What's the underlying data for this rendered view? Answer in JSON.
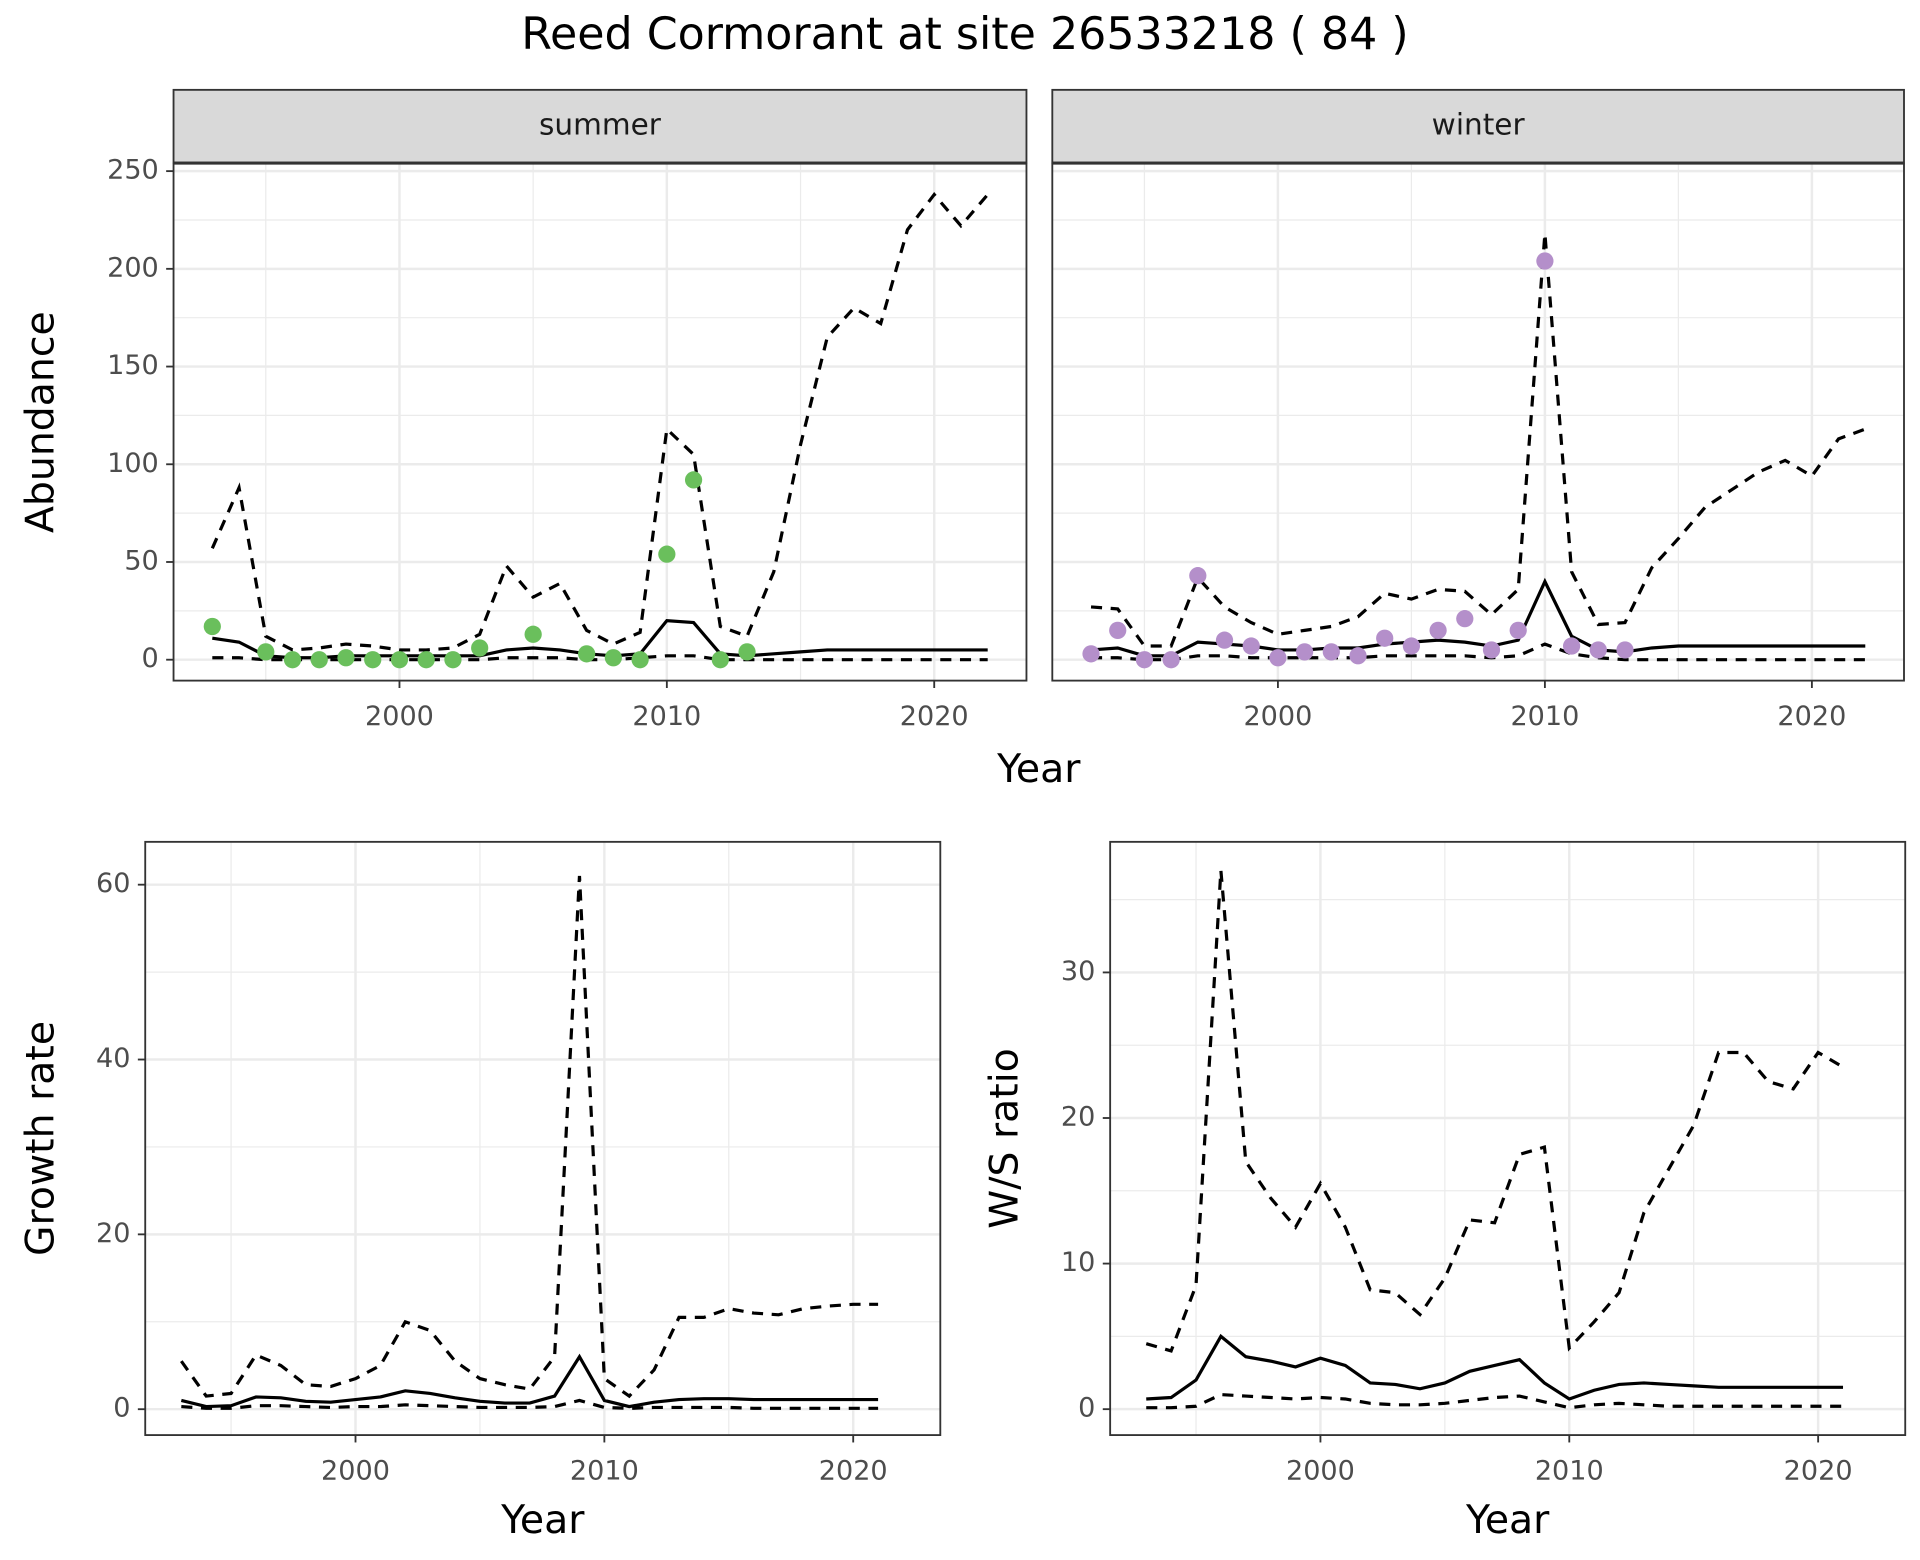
{
  "title": "Reed Cormorant at site 26533218 ( 84 )",
  "chart_data": [
    {
      "type": "line",
      "facet": "summer",
      "ylabel": "Abundance",
      "xlabel": "Year",
      "x": [
        1993,
        1994,
        1995,
        1996,
        1997,
        1998,
        1999,
        2000,
        2001,
        2002,
        2003,
        2004,
        2005,
        2006,
        2007,
        2008,
        2009,
        2010,
        2011,
        2012,
        2013,
        2014,
        2015,
        2016,
        2017,
        2018,
        2019,
        2020,
        2021,
        2022
      ],
      "series": [
        {
          "linestyle": "solid",
          "color": "#000000",
          "values": [
            11,
            9,
            2,
            1,
            1,
            2,
            2,
            2,
            2,
            2,
            2,
            5,
            6,
            5,
            3,
            2,
            3,
            20,
            19,
            3,
            2,
            3,
            4,
            5,
            5,
            5,
            5,
            5,
            5,
            5
          ]
        },
        {
          "linestyle": "dashed",
          "color": "#000000",
          "values": [
            57,
            88,
            12,
            5,
            6,
            8,
            7,
            5,
            5,
            6,
            13,
            48,
            32,
            39,
            15,
            8,
            14,
            118,
            105,
            17,
            12,
            45,
            110,
            165,
            180,
            172,
            220,
            238,
            222,
            238
          ]
        },
        {
          "linestyle": "dashed",
          "color": "#000000",
          "values": [
            1,
            1,
            0,
            0,
            0,
            0,
            0,
            0,
            0,
            0,
            0,
            1,
            1,
            1,
            0,
            0,
            1,
            2,
            2,
            0,
            0,
            0,
            0,
            0,
            0,
            0,
            0,
            0,
            0,
            0
          ]
        }
      ],
      "points": {
        "color": "#6abf5c",
        "x": [
          1993,
          1995,
          1996,
          1997,
          1998,
          1999,
          2000,
          2001,
          2002,
          2003,
          2005,
          2007,
          2008,
          2009,
          2010,
          2011,
          2012,
          2013
        ],
        "values": [
          17,
          4,
          0,
          0,
          1,
          0,
          0,
          0,
          0,
          6,
          13,
          3,
          1,
          0,
          54,
          92,
          0,
          4
        ]
      },
      "xlim": [
        1991.55,
        2023.45
      ],
      "ylim": [
        -10.7,
        253.8
      ],
      "xticks": [
        2000,
        2010,
        2020
      ],
      "yticks": [
        0,
        50,
        100,
        150,
        200,
        250
      ],
      "grid": true,
      "show_ytick_labels": true
    },
    {
      "type": "line",
      "facet": "winter",
      "x": [
        1993,
        1994,
        1995,
        1996,
        1997,
        1998,
        1999,
        2000,
        2001,
        2002,
        2003,
        2004,
        2005,
        2006,
        2007,
        2008,
        2009,
        2010,
        2011,
        2012,
        2013,
        2014,
        2015,
        2016,
        2017,
        2018,
        2019,
        2020,
        2021,
        2022
      ],
      "series": [
        {
          "linestyle": "solid",
          "color": "#000000",
          "values": [
            5,
            6,
            2,
            2,
            9,
            8,
            7,
            5,
            5,
            6,
            6,
            8,
            9,
            10,
            9,
            7,
            10,
            40,
            12,
            5,
            4,
            6,
            7,
            7,
            7,
            7,
            7,
            7,
            7,
            7
          ]
        },
        {
          "linestyle": "dashed",
          "color": "#000000",
          "values": [
            27,
            26,
            7,
            7,
            42,
            27,
            19,
            13,
            15,
            17,
            22,
            34,
            31,
            36,
            35,
            23,
            36,
            218,
            45,
            18,
            19,
            47,
            62,
            78,
            87,
            96,
            102,
            94,
            113,
            118
          ]
        },
        {
          "linestyle": "dashed",
          "color": "#000000",
          "values": [
            1,
            1,
            0,
            0,
            2,
            2,
            1,
            1,
            1,
            1,
            1,
            2,
            2,
            2,
            2,
            1,
            2,
            8,
            3,
            1,
            0,
            0,
            0,
            0,
            0,
            0,
            0,
            0,
            0,
            0
          ]
        }
      ],
      "points": {
        "color": "#b48fca",
        "x": [
          1993,
          1994,
          1995,
          1996,
          1997,
          1998,
          1999,
          2000,
          2001,
          2002,
          2003,
          2004,
          2005,
          2006,
          2007,
          2008,
          2009,
          2010,
          2011,
          2012,
          2013
        ],
        "values": [
          3,
          15,
          0,
          0,
          43,
          10,
          7,
          1,
          4,
          4,
          2,
          11,
          7,
          15,
          21,
          5,
          15,
          204,
          7,
          5,
          5
        ]
      },
      "xlim": [
        1991.55,
        2023.45
      ],
      "ylim": [
        -10.7,
        253.8
      ],
      "xticks": [
        2000,
        2010,
        2020
      ],
      "yticks": [
        0,
        50,
        100,
        150,
        200,
        250
      ],
      "grid": true,
      "show_ytick_labels": false
    },
    {
      "type": "line",
      "ylabel": "Growth rate",
      "xlabel": "Year",
      "x": [
        1993,
        1994,
        1995,
        1996,
        1997,
        1998,
        1999,
        2000,
        2001,
        2002,
        2003,
        2004,
        2005,
        2006,
        2007,
        2008,
        2009,
        2010,
        2011,
        2012,
        2013,
        2014,
        2015,
        2016,
        2017,
        2018,
        2019,
        2020,
        2021
      ],
      "series": [
        {
          "linestyle": "solid",
          "color": "#000000",
          "values": [
            1,
            0.3,
            0.4,
            1.4,
            1.3,
            0.9,
            0.8,
            1.1,
            1.4,
            2.1,
            1.8,
            1.3,
            0.9,
            0.7,
            0.7,
            1.5,
            6,
            1,
            0.3,
            0.8,
            1.1,
            1.2,
            1.2,
            1.1,
            1.1,
            1.1,
            1.1,
            1.1,
            1.1
          ]
        },
        {
          "linestyle": "dashed",
          "color": "#000000",
          "values": [
            5.5,
            1.5,
            1.8,
            6.2,
            5,
            2.8,
            2.6,
            3.5,
            5,
            10,
            9,
            5.5,
            3.5,
            2.8,
            2.3,
            6,
            61,
            3.5,
            1.5,
            4.5,
            10.5,
            10.5,
            11.5,
            11,
            10.8,
            11.5,
            11.8,
            12,
            12
          ]
        },
        {
          "linestyle": "dashed",
          "color": "#000000",
          "values": [
            0.3,
            0.1,
            0.1,
            0.4,
            0.4,
            0.3,
            0.2,
            0.3,
            0.3,
            0.5,
            0.4,
            0.3,
            0.2,
            0.2,
            0.2,
            0.3,
            1,
            0.2,
            0.1,
            0.2,
            0.2,
            0.2,
            0.2,
            0.1,
            0.1,
            0.1,
            0.1,
            0.1,
            0.1
          ]
        }
      ],
      "xlim": [
        1991.55,
        2023.5
      ],
      "ylim": [
        -2.96,
        64.9
      ],
      "xticks": [
        2000,
        2010,
        2020
      ],
      "yticks": [
        0,
        20,
        40,
        60
      ],
      "grid": true,
      "show_ytick_labels": true
    },
    {
      "type": "line",
      "ylabel": "W/S ratio",
      "xlabel": "Year",
      "x": [
        1993,
        1994,
        1995,
        1996,
        1997,
        1998,
        1999,
        2000,
        2001,
        2002,
        2003,
        2004,
        2005,
        2006,
        2007,
        2008,
        2009,
        2010,
        2011,
        2012,
        2013,
        2014,
        2015,
        2016,
        2017,
        2018,
        2019,
        2020,
        2021
      ],
      "series": [
        {
          "linestyle": "solid",
          "color": "#000000",
          "values": [
            0.7,
            0.8,
            2,
            5,
            3.6,
            3.3,
            2.9,
            3.5,
            3,
            1.8,
            1.7,
            1.4,
            1.8,
            2.6,
            3,
            3.4,
            1.8,
            0.7,
            1.3,
            1.7,
            1.8,
            1.7,
            1.6,
            1.5,
            1.5,
            1.5,
            1.5,
            1.5,
            1.5
          ]
        },
        {
          "linestyle": "dashed",
          "color": "#000000",
          "values": [
            4.5,
            4,
            8.5,
            37,
            17,
            14.5,
            12.5,
            15.5,
            12.5,
            8.2,
            8,
            6.5,
            9,
            13,
            12.8,
            17.5,
            18,
            4.2,
            6,
            8,
            13.5,
            16.5,
            19.5,
            24.5,
            24.5,
            22.5,
            22,
            24.5,
            23.5
          ]
        },
        {
          "linestyle": "dashed",
          "color": "#000000",
          "values": [
            0.1,
            0.1,
            0.2,
            1,
            0.9,
            0.8,
            0.7,
            0.8,
            0.7,
            0.4,
            0.3,
            0.3,
            0.4,
            0.6,
            0.8,
            0.9,
            0.5,
            0.1,
            0.3,
            0.4,
            0.3,
            0.2,
            0.2,
            0.2,
            0.2,
            0.2,
            0.2,
            0.2,
            0.2
          ]
        }
      ],
      "xlim": [
        1991.55,
        2023.5
      ],
      "ylim": [
        -1.78,
        38.97
      ],
      "xticks": [
        2000,
        2010,
        2020
      ],
      "yticks": [
        0,
        10,
        20,
        30
      ],
      "grid": true,
      "show_ytick_labels": true
    }
  ]
}
